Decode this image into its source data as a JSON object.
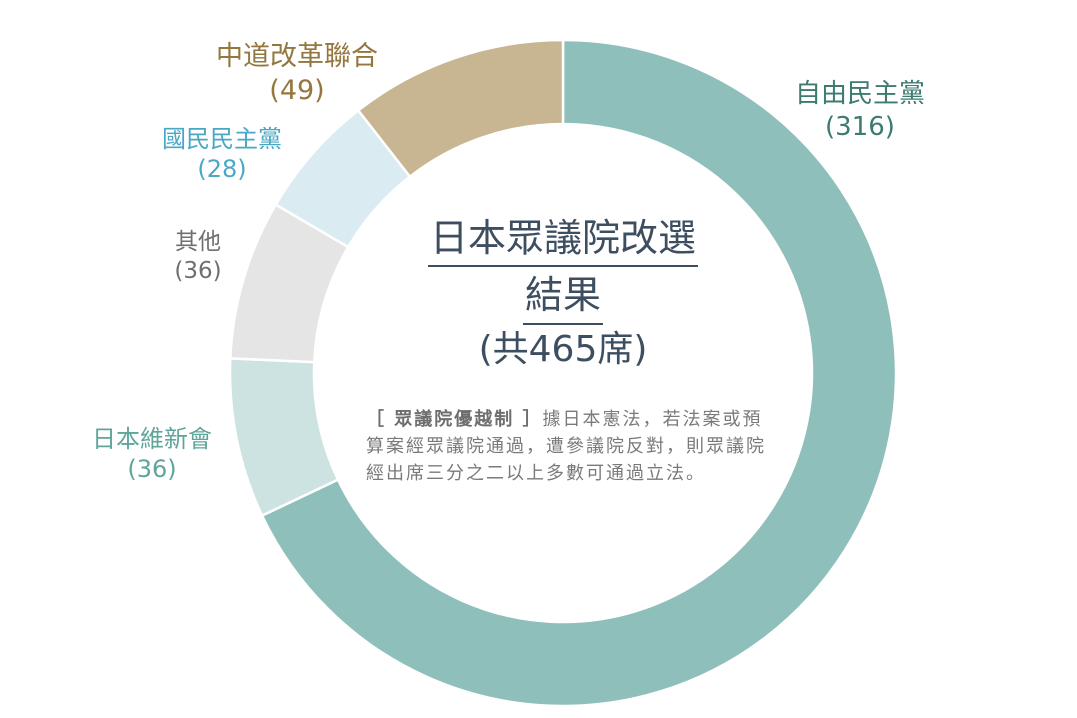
{
  "chart_data": {
    "type": "pie",
    "title": "日本眾議院改選",
    "title_line2": "結果",
    "subtitle": "(共465席)",
    "total": 465,
    "slices": [
      {
        "name": "自由民主黨",
        "value": 316,
        "value_text": "(316)",
        "color": "#8fbfba",
        "label_color": "#3d7a72"
      },
      {
        "name": "日本維新會",
        "value": 36,
        "value_text": "(36)",
        "color": "#cde3e1",
        "label_color": "#5fa59b"
      },
      {
        "name": "其他",
        "value": 36,
        "value_text": "(36)",
        "color": "#e5e5e5",
        "label_color": "#6f6f6f"
      },
      {
        "name": "國民民主黨",
        "value": 28,
        "value_text": "(28)",
        "color": "#daecf2",
        "label_color": "#4aa8c4"
      },
      {
        "name": "中道改革聯合",
        "value": 49,
        "value_text": "(49)",
        "color": "#c8b592",
        "label_color": "#94773f"
      }
    ]
  },
  "note": {
    "heading": "［ 眾議院優越制 ］",
    "body": "據日本憲法，若法案或預算案經眾議院通過，遭參議院反對，則眾議院經出席三分之二以上多數可通過立法。"
  }
}
